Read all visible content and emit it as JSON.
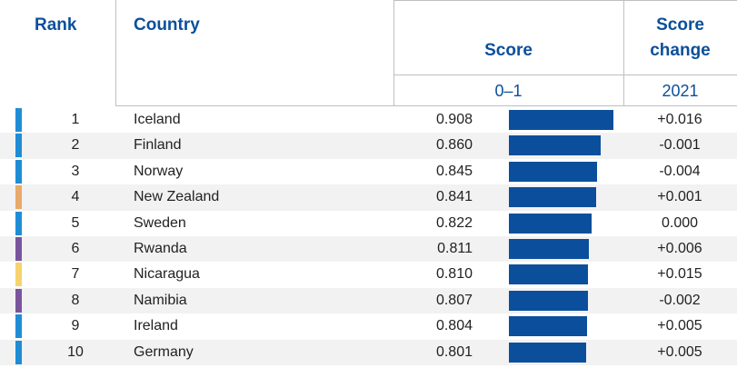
{
  "header": {
    "rank": "Rank",
    "country": "Country",
    "score": "Score",
    "score_change_line1": "Score",
    "score_change_line2": "change",
    "score_range": "0–1",
    "change_year": "2021"
  },
  "colors": {
    "accent": "#0b4f9c",
    "region_blue": "#1f8dd6",
    "region_orange": "#e8a96a",
    "region_purple": "#7a559c",
    "region_yellow": "#f6d36e"
  },
  "chart_data": {
    "type": "bar",
    "title": "",
    "categories": [
      "Iceland",
      "Finland",
      "Norway",
      "New Zealand",
      "Sweden",
      "Rwanda",
      "Nicaragua",
      "Namibia",
      "Ireland",
      "Germany"
    ],
    "ranks": [
      "1",
      "2",
      "3",
      "4",
      "5",
      "6",
      "7",
      "8",
      "9",
      "10"
    ],
    "values": [
      0.908,
      0.86,
      0.845,
      0.841,
      0.822,
      0.811,
      0.81,
      0.807,
      0.804,
      0.801
    ],
    "value_labels": [
      "0.908",
      "0.860",
      "0.845",
      "0.841",
      "0.822",
      "0.811",
      "0.810",
      "0.807",
      "0.804",
      "0.801"
    ],
    "score_change": [
      "+0.016",
      "-0.001",
      "-0.004",
      "+0.001",
      "0.000",
      "+0.006",
      "+0.015",
      "-0.002",
      "+0.005",
      "+0.005"
    ],
    "region_colors": [
      "#1f8dd6",
      "#1f8dd6",
      "#1f8dd6",
      "#e8a96a",
      "#1f8dd6",
      "#7a559c",
      "#f6d36e",
      "#7a559c",
      "#1f8dd6",
      "#1f8dd6"
    ],
    "xlim": [
      0,
      1
    ],
    "grid": false
  }
}
